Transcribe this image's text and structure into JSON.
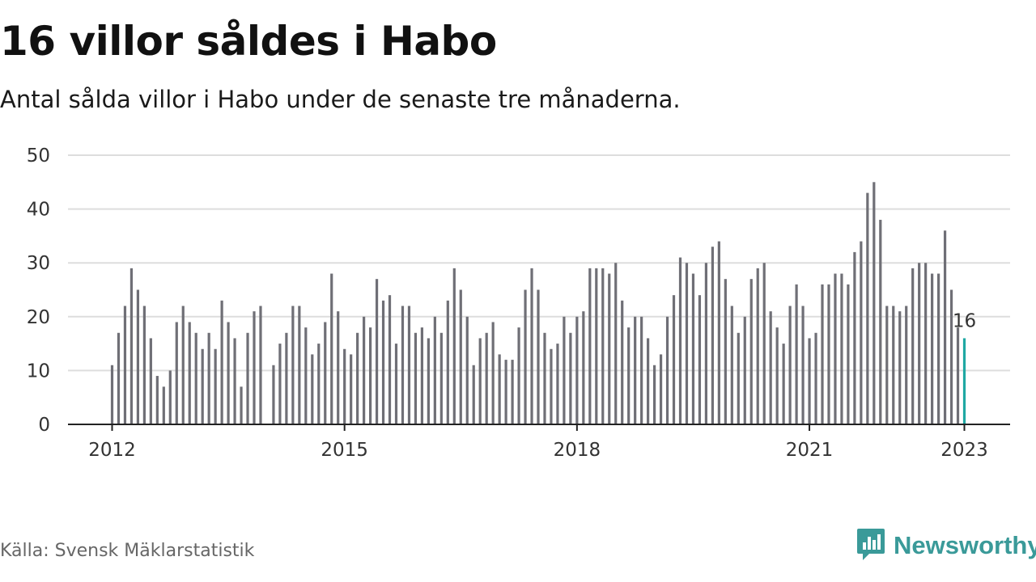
{
  "title": "16 villor såldes i Habo",
  "subtitle": "Antal sålda villor i Habo under de senaste tre månaderna.",
  "source": "Källa: Svensk Mäklarstatistik",
  "brand": {
    "name": "Newsworthy",
    "icon": "newsworthy-logo-icon"
  },
  "colors": {
    "bars": "#6f6f76",
    "highlight": "#1fa8a3",
    "grid": "#dddddd",
    "axis": "#222222",
    "brand": "#3a9a99"
  },
  "chart_data": {
    "type": "bar",
    "title": "16 villor såldes i Habo",
    "ylim": [
      0,
      50
    ],
    "y_ticks": [
      "0",
      "10",
      "20",
      "30",
      "40",
      "50"
    ],
    "x_ticks": [
      "2012",
      "2015",
      "2018",
      "2021",
      "2023"
    ],
    "grid": true,
    "start": "2012-01",
    "frequency": "monthly",
    "values": [
      11,
      17,
      22,
      29,
      25,
      22,
      16,
      9,
      7,
      10,
      19,
      22,
      19,
      17,
      14,
      17,
      14,
      23,
      19,
      16,
      7,
      17,
      21,
      22,
      null,
      11,
      15,
      17,
      22,
      22,
      18,
      13,
      15,
      19,
      28,
      21,
      14,
      13,
      17,
      20,
      18,
      27,
      23,
      24,
      15,
      22,
      22,
      17,
      18,
      16,
      20,
      17,
      23,
      29,
      25,
      20,
      11,
      16,
      17,
      19,
      13,
      12,
      12,
      18,
      25,
      29,
      25,
      17,
      14,
      15,
      20,
      17,
      20,
      21,
      29,
      29,
      29,
      28,
      30,
      23,
      18,
      20,
      20,
      16,
      11,
      13,
      20,
      24,
      31,
      30,
      28,
      24,
      30,
      33,
      34,
      27,
      22,
      17,
      20,
      27,
      29,
      30,
      21,
      18,
      15,
      22,
      26,
      22,
      16,
      17,
      26,
      26,
      28,
      28,
      26,
      32,
      34,
      43,
      45,
      38,
      22,
      22,
      21,
      22,
      29,
      30,
      30,
      28,
      28,
      36,
      25,
      18,
      16
    ],
    "annotation": {
      "label": "16",
      "value": 16
    }
  }
}
